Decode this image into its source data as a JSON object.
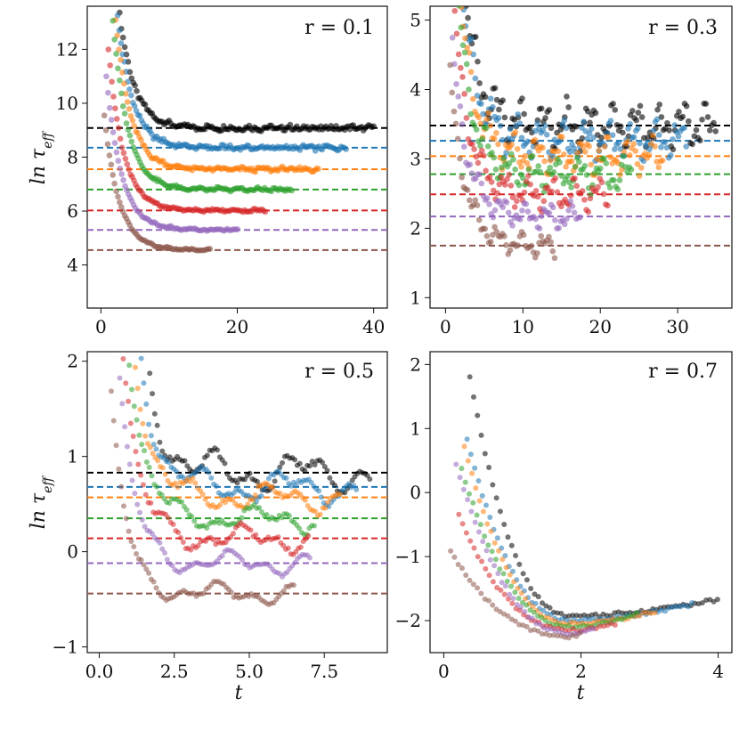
{
  "colors": [
    "#000000",
    "#1f77b4",
    "#ff7f0e",
    "#2ca02c",
    "#d62728",
    "#9467bd",
    "#8c564b"
  ],
  "chart_data": [
    {
      "type": "scatter",
      "title": "r = 0.1",
      "xlabel": "",
      "ylabel": "ln τ_eff",
      "xlim": [
        -2,
        42
      ],
      "ylim": [
        2.4,
        13.6
      ],
      "xticks": [
        0,
        20,
        40
      ],
      "yticks": [
        4,
        6,
        8,
        10,
        12
      ],
      "point_density": 4,
      "series": [
        {
          "name": "black",
          "plateau": 9.08,
          "tend": 40.0,
          "amp": 0.22,
          "wobble": 0.16,
          "start": 2.5,
          "peak": 13.8
        },
        {
          "name": "blue",
          "plateau": 8.35,
          "tend": 36.0,
          "amp": 0.2,
          "wobble": 0.14,
          "start": 2.2,
          "peak": 13.8
        },
        {
          "name": "orange",
          "plateau": 7.55,
          "tend": 32.0,
          "amp": 0.18,
          "wobble": 0.12,
          "start": 1.9,
          "peak": 13.8
        },
        {
          "name": "green",
          "plateau": 6.8,
          "tend": 28.0,
          "amp": 0.18,
          "wobble": 0.1,
          "start": 1.5,
          "peak": 13.8
        },
        {
          "name": "red",
          "plateau": 6.02,
          "tend": 24.0,
          "amp": 0.15,
          "wobble": 0.08,
          "start": 1.1,
          "peak": 12.0
        },
        {
          "name": "purple",
          "plateau": 5.3,
          "tend": 20.0,
          "amp": 0.13,
          "wobble": 0.06,
          "start": 0.8,
          "peak": 11.0
        },
        {
          "name": "brown",
          "plateau": 4.55,
          "tend": 16.0,
          "amp": 0.12,
          "wobble": 0.04,
          "start": 0.5,
          "peak": 9.5
        }
      ]
    },
    {
      "type": "scatter",
      "title": "r = 0.3",
      "xlabel": "",
      "ylabel": "",
      "xlim": [
        -2,
        37
      ],
      "ylim": [
        0.85,
        5.2
      ],
      "xticks": [
        0,
        10,
        20,
        30
      ],
      "yticks": [
        1,
        2,
        3,
        4,
        5
      ],
      "point_density": 4,
      "series": [
        {
          "name": "black",
          "plateau": 3.48,
          "tend": 35.0,
          "amp": 0.75,
          "wobble": 0.12,
          "start": 2.4,
          "peak": 5.4
        },
        {
          "name": "blue",
          "plateau": 3.26,
          "tend": 31.0,
          "amp": 0.65,
          "wobble": 0.1,
          "start": 2.1,
          "peak": 5.4
        },
        {
          "name": "orange",
          "plateau": 3.04,
          "tend": 28.0,
          "amp": 0.6,
          "wobble": 0.1,
          "start": 1.8,
          "peak": 5.4
        },
        {
          "name": "green",
          "plateau": 2.78,
          "tend": 24.0,
          "amp": 0.55,
          "wobble": 0.09,
          "start": 1.5,
          "peak": 5.4
        },
        {
          "name": "red",
          "plateau": 2.49,
          "tend": 21.0,
          "amp": 0.5,
          "wobble": 0.07,
          "start": 1.2,
          "peak": 5.0
        },
        {
          "name": "purple",
          "plateau": 2.17,
          "tend": 17.5,
          "amp": 0.42,
          "wobble": 0.06,
          "start": 0.9,
          "peak": 4.6
        },
        {
          "name": "brown",
          "plateau": 1.75,
          "tend": 14.0,
          "amp": 0.37,
          "wobble": 0.05,
          "start": 0.6,
          "peak": 4.2
        }
      ]
    },
    {
      "type": "scatter",
      "title": "r = 0.5",
      "xlabel": "t",
      "ylabel": "ln τ_eff",
      "xlim": [
        -0.4,
        9.6
      ],
      "ylim": [
        -1.06,
        2.1
      ],
      "xticks": [
        0.0,
        2.5,
        5.0,
        7.5
      ],
      "ytick_values": [
        -1,
        0,
        1,
        2
      ],
      "yticks": [
        "−1",
        "0",
        "1",
        "2"
      ],
      "point_density": 12,
      "series": [
        {
          "name": "black",
          "plateau": 0.83,
          "tend": 9.0,
          "amp": 0.45,
          "wobble": 0.06,
          "start": 1.6,
          "peak": 2.1
        },
        {
          "name": "blue",
          "plateau": 0.68,
          "tend": 8.6,
          "amp": 0.38,
          "wobble": 0.05,
          "start": 1.4,
          "peak": 2.1
        },
        {
          "name": "orange",
          "plateau": 0.57,
          "tend": 8.0,
          "amp": 0.34,
          "wobble": 0.05,
          "start": 1.2,
          "peak": 2.1
        },
        {
          "name": "green",
          "plateau": 0.35,
          "tend": 7.2,
          "amp": 0.3,
          "wobble": 0.05,
          "start": 1.0,
          "peak": 2.1
        },
        {
          "name": "red",
          "plateau": 0.14,
          "tend": 7.0,
          "amp": 0.3,
          "wobble": 0.06,
          "start": 0.8,
          "peak": 2.1
        },
        {
          "name": "purple",
          "plateau": -0.12,
          "tend": 7.0,
          "amp": 0.28,
          "wobble": 0.03,
          "start": 0.6,
          "peak": 2.1
        },
        {
          "name": "brown",
          "plateau": -0.44,
          "tend": 6.5,
          "amp": 0.25,
          "wobble": 0.03,
          "start": 0.4,
          "peak": 1.6
        }
      ],
      "hlines": [
        0.83,
        0.68,
        0.57,
        0.35,
        0.14,
        -0.12,
        -0.44
      ]
    },
    {
      "type": "scatter",
      "title": "r = 0.7",
      "xlabel": "t",
      "ylabel": "",
      "xlim": [
        -0.2,
        4.2
      ],
      "ylim": [
        -2.5,
        2.2
      ],
      "xticks": [
        0,
        2,
        4
      ],
      "ytick_values": [
        -2,
        -1,
        0,
        1,
        2
      ],
      "yticks": [
        "−2",
        "−1",
        "0",
        "1",
        "2"
      ],
      "min_t": 1.9,
      "min_y": -1.95,
      "series": [
        {
          "name": "black",
          "tstart": 0.38,
          "ystart": 1.8,
          "tend": 4.0,
          "yend": -1.67,
          "ymin": -1.93
        },
        {
          "name": "blue",
          "tstart": 0.34,
          "ystart": 0.85,
          "tend": 3.6,
          "yend": -1.75,
          "ymin": -2.0
        },
        {
          "name": "orange",
          "tstart": 0.3,
          "ystart": 0.72,
          "tend": 3.1,
          "yend": -1.85,
          "ymin": -2.05
        },
        {
          "name": "green",
          "tstart": 0.26,
          "ystart": 0.38,
          "tend": 2.8,
          "yend": -1.9,
          "ymin": -2.1
        },
        {
          "name": "red",
          "tstart": 0.22,
          "ystart": -0.35,
          "tend": 2.5,
          "yend": -2.05,
          "ymin": -2.15
        },
        {
          "name": "purple",
          "tstart": 0.18,
          "ystart": 0.45,
          "tend": 2.2,
          "yend": -2.1,
          "ymin": -2.2
        },
        {
          "name": "brown",
          "tstart": 0.1,
          "ystart": -0.92,
          "tend": 2.0,
          "yend": -2.15,
          "ymin": -2.25
        }
      ]
    }
  ],
  "panels": [
    {
      "id": "r01",
      "label": "r = 0.1"
    },
    {
      "id": "r03",
      "label": "r = 0.3"
    },
    {
      "id": "r05",
      "label": "r = 0.5"
    },
    {
      "id": "r07",
      "label": "r = 0.7"
    }
  ],
  "ylabel_text": "ln τ",
  "ylabel_sub": "eff",
  "xlabel_text": "t"
}
